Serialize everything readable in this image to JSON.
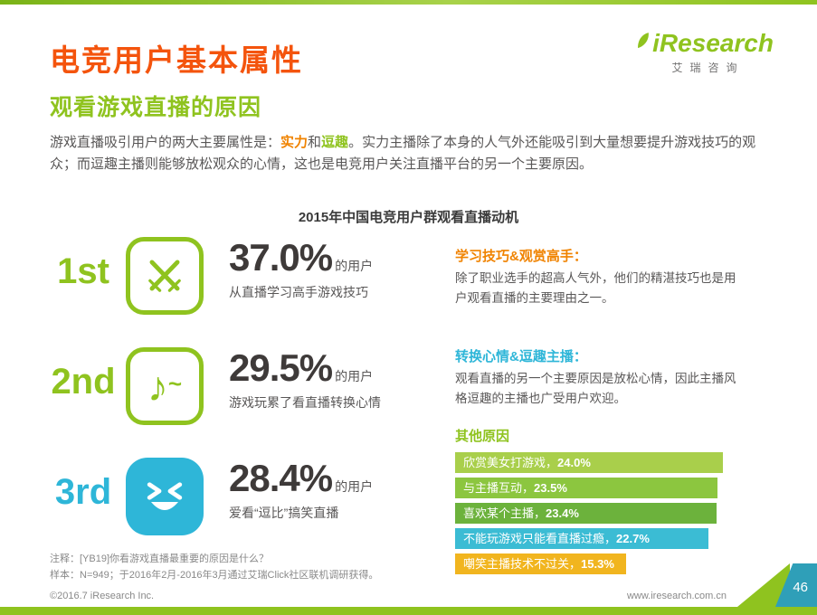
{
  "colors": {
    "green": "#8fc31f",
    "orange": "#f08300",
    "cyan": "#2eb6d8",
    "title_orange": "#f4540d",
    "corner_teal": "#2f9fb8"
  },
  "logo": {
    "text": "iResearch",
    "subtext": "艾瑞咨询"
  },
  "header": {
    "title": "电竞用户基本属性",
    "subtitle": "观看游戏直播的原因"
  },
  "intro": {
    "seg1": "游戏直播吸引用户的两大主要属性是：",
    "hl1": "实力",
    "seg2": "和",
    "hl2": "逗趣",
    "seg3": "。实力主播除了本身的人气外还能吸引到大量想要提升游戏技巧的观众；而逗趣主播则能够放松观众的心情，这也是电竞用户关注直播平台的另一个主要原因。"
  },
  "chart_title": "2015年中国电竞用户群观看直播动机",
  "ranks": [
    {
      "rank": "1st",
      "pct": "37.0%",
      "suffix": "的用户",
      "desc": "从直播学习高手游戏技巧",
      "color": "#8fc31f",
      "icon": "crossed-swords-icon"
    },
    {
      "rank": "2nd",
      "pct": "29.5%",
      "suffix": "的用户",
      "desc": "游戏玩累了看直播转换心情",
      "color": "#8fc31f",
      "icon": "music-note-icon"
    },
    {
      "rank": "3rd",
      "pct": "28.4%",
      "suffix": "的用户",
      "desc": "爱看“逗比”搞笑直播",
      "color": "#2eb6d8",
      "icon": "laughing-face-icon"
    }
  ],
  "sections": {
    "skill": {
      "heading": "学习技巧&观赏高手：",
      "body": "除了职业选手的超高人气外，他们的精湛技巧也是用户观看直播的主要理由之一。"
    },
    "mood": {
      "heading": "转换心情&逗趣主播：",
      "body": "观看直播的另一个主要原因是放松心情，因此主播风格逗趣的主播也广受用户欢迎。"
    },
    "other": {
      "heading": "其他原因",
      "bars": [
        {
          "label": "欣赏美女打游戏，",
          "value_text": "24.0%",
          "value": 24.0,
          "color": "#a9cf4b"
        },
        {
          "label": "与主播互动，",
          "value_text": "23.5%",
          "value": 23.5,
          "color": "#8cc63f"
        },
        {
          "label": "喜欢某个主播，",
          "value_text": "23.4%",
          "value": 23.4,
          "color": "#6cb23c"
        },
        {
          "label": "不能玩游戏只能看直播过瘾，",
          "value_text": "22.7%",
          "value": 22.7,
          "color": "#3bbcd4"
        },
        {
          "label": "嘲笑主播技术不过关，",
          "value_text": "15.3%",
          "value": 15.3,
          "color": "#f1b51f"
        }
      ]
    }
  },
  "footnotes": {
    "line1": "注释：[YB19]你看游戏直播最重要的原因是什么？",
    "line2": "样本：N=949；于2016年2月-2016年3月通过艾瑞Click社区联机调研获得。"
  },
  "footer": {
    "copyright": "©2016.7 iResearch Inc.",
    "website": "www.iresearch.com.cn",
    "page": "46"
  },
  "chart_data": {
    "type": "bar",
    "title": "2015年中国电竞用户群观看直播动机",
    "unit": "%",
    "top_motivations": {
      "categories": [
        "从直播学习高手游戏技巧",
        "游戏玩累了看直播转换心情",
        "爱看“逗比”搞笑直播"
      ],
      "values": [
        37.0,
        29.5,
        28.4
      ],
      "ranks": [
        "1st",
        "2nd",
        "3rd"
      ]
    },
    "other_reasons": {
      "categories": [
        "欣赏美女打游戏",
        "与主播互动",
        "喜欢某个主播",
        "不能玩游戏只能看直播过瘾",
        "嘲笑主播技术不过关"
      ],
      "values": [
        24.0,
        23.5,
        23.4,
        22.7,
        15.3
      ],
      "xlim": [
        0,
        24.0
      ],
      "orientation": "horizontal"
    }
  }
}
